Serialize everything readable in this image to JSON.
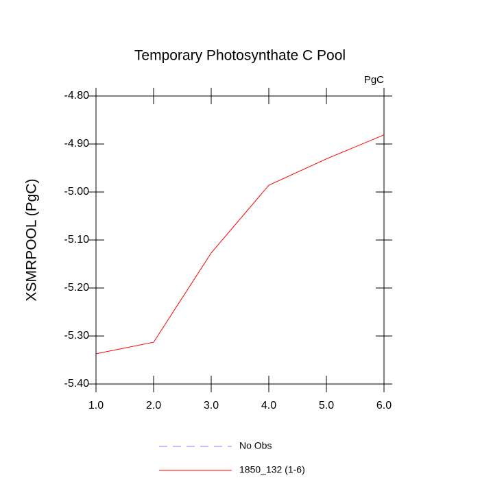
{
  "chart_data": {
    "type": "line",
    "title": "Temporary Photosynthate C Pool",
    "units": "PgC",
    "y_label": "XSMRPOOL  (PgC)",
    "x": [
      1,
      2,
      3,
      4,
      5,
      6
    ],
    "series": [
      {
        "name": "No Obs",
        "color": "#8080ff",
        "dashed": true,
        "values": [
          null,
          null,
          null,
          null,
          null,
          null
        ]
      },
      {
        "name": "1850_132 (1-6)",
        "color": "#ff0000",
        "dashed": false,
        "values": [
          -5.337,
          -5.313,
          -5.127,
          -4.986,
          -4.931,
          -4.881
        ]
      }
    ],
    "xlim": [
      1,
      6
    ],
    "xticks": [
      {
        "value": 1,
        "label": "1.0"
      },
      {
        "value": 2,
        "label": "2.0"
      },
      {
        "value": 3,
        "label": "3.0"
      },
      {
        "value": 4,
        "label": "4.0"
      },
      {
        "value": 5,
        "label": "5.0"
      },
      {
        "value": 6,
        "label": "6.0"
      }
    ],
    "ylim": [
      -5.4,
      -4.8
    ],
    "yticks": [
      {
        "value": -5.4,
        "label": "-5.40"
      },
      {
        "value": -5.3,
        "label": "-5.30"
      },
      {
        "value": -5.2,
        "label": "-5.20"
      },
      {
        "value": -5.1,
        "label": "-5.10"
      },
      {
        "value": -5.0,
        "label": "-5.00"
      },
      {
        "value": -4.9,
        "label": "-4.90"
      },
      {
        "value": -4.8,
        "label": "-4.80"
      }
    ]
  }
}
